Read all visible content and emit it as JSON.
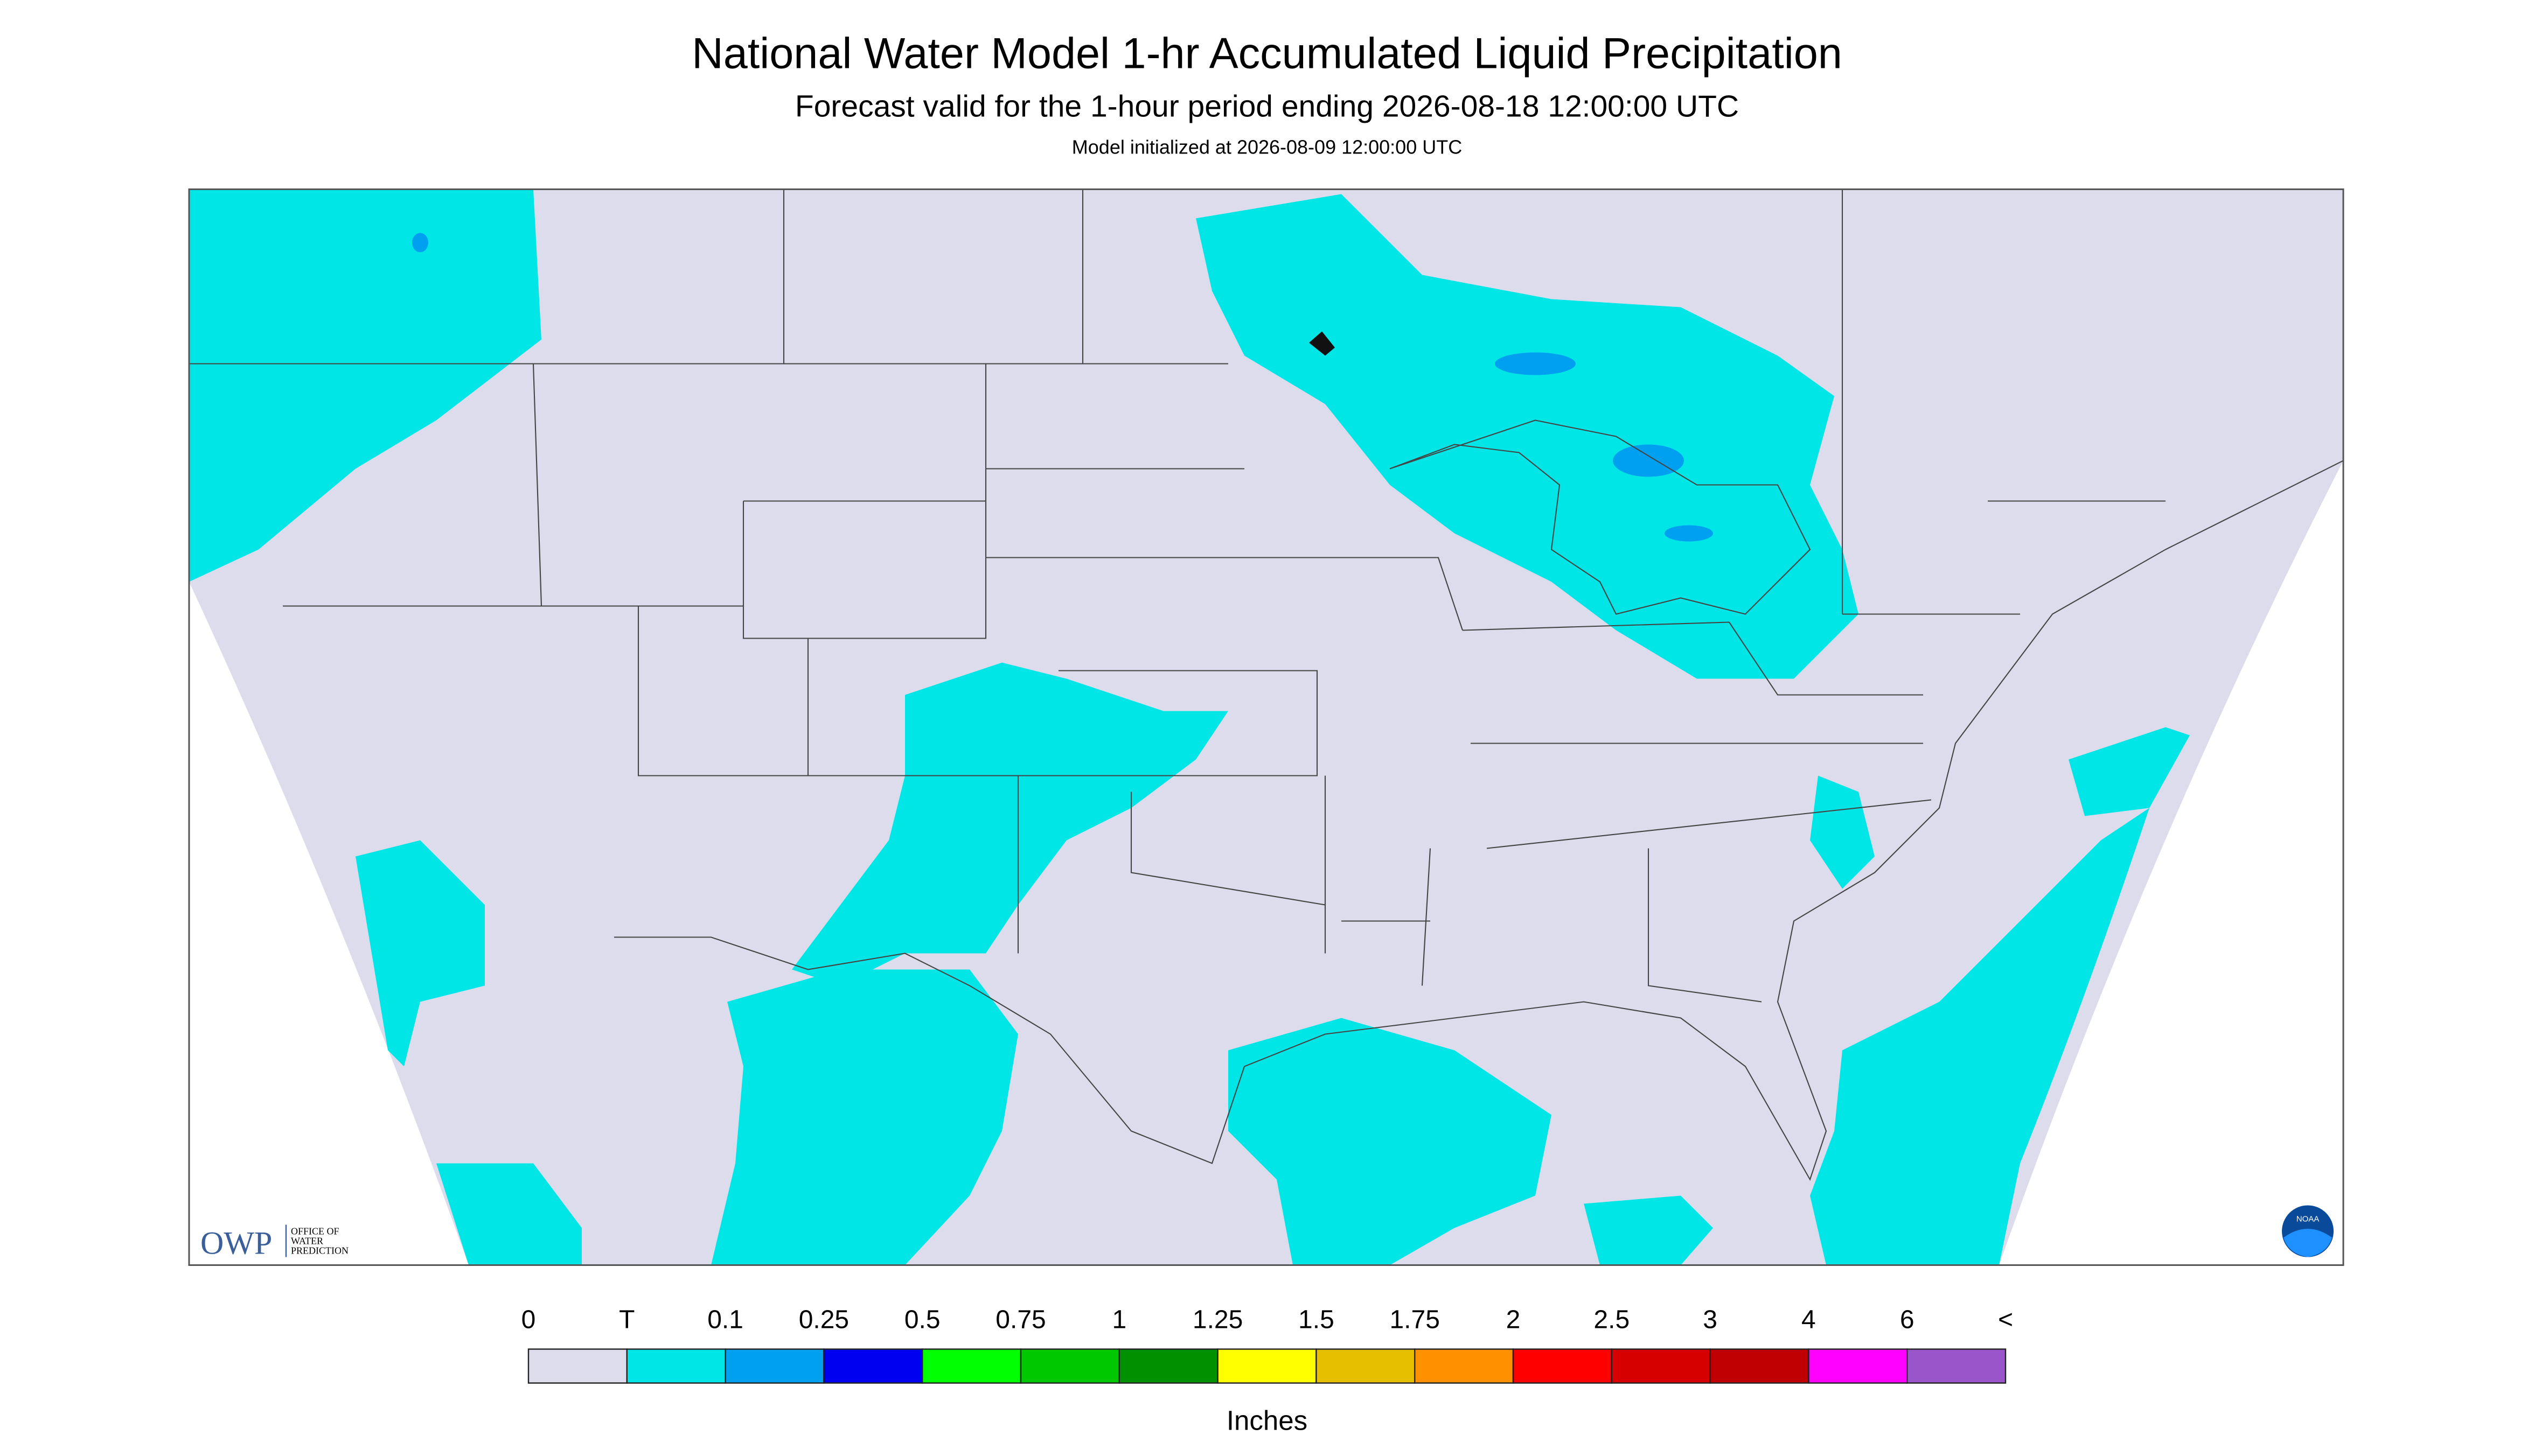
{
  "header": {
    "title": "National Water Model 1-hr Accumulated Liquid Precipitation",
    "subtitle": "Forecast valid for the 1-hour period ending 2026-08-18 12:00:00 UTC",
    "note": "Model initialized at 2026-08-09 12:00:00 UTC"
  },
  "logos": {
    "owp": "OWP",
    "owp_name": [
      "OFFICE OF",
      "WATER",
      "PREDICTION"
    ],
    "noaa": "NOAA"
  },
  "legend": {
    "labels": [
      "0",
      "T",
      "0.1",
      "0.25",
      "0.5",
      "0.75",
      "1",
      "1.25",
      "1.5",
      "1.75",
      "2",
      "2.5",
      "3",
      "4",
      "6",
      "<"
    ],
    "colors": [
      "#dcdcec",
      "#00e6e6",
      "#00a0f0",
      "#0000f0",
      "#00ff00",
      "#00c800",
      "#009000",
      "#ffff00",
      "#e6c000",
      "#ff9000",
      "#ff0000",
      "#d60000",
      "#c00000",
      "#ff00ff",
      "#9955c9"
    ],
    "unit": "Inches"
  }
}
